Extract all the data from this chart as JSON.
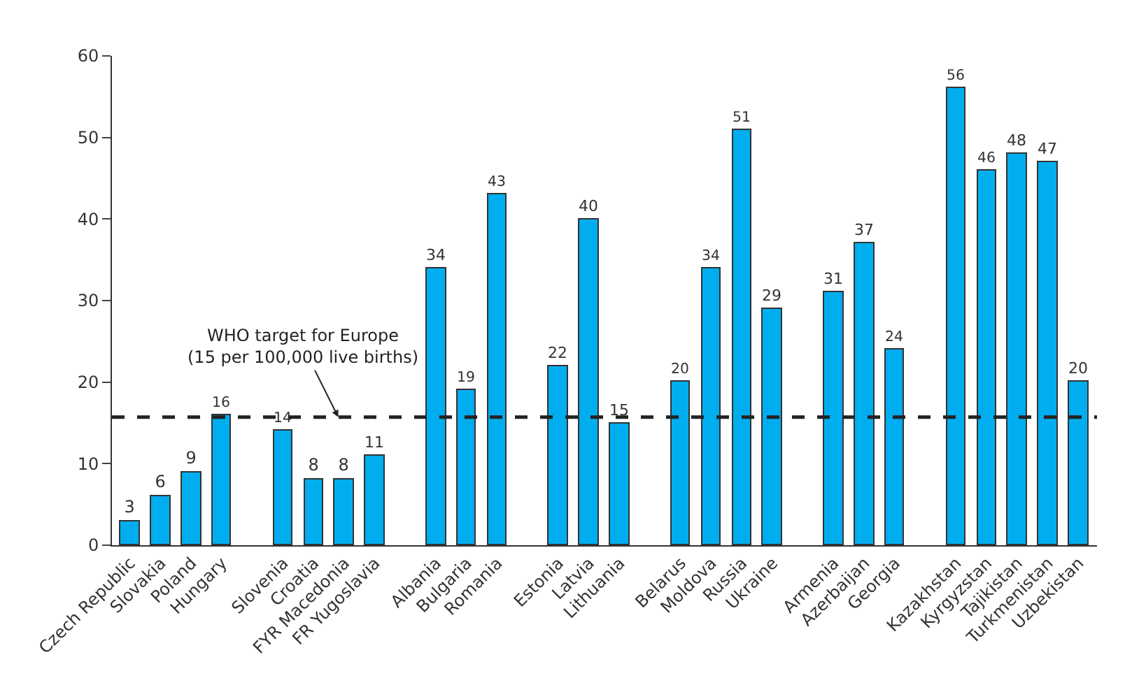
{
  "chart_data": {
    "type": "bar",
    "categories": [
      "Czech Republic",
      "Slovakia",
      "Poland",
      "Hungary",
      null,
      "Slovenia",
      "Croatia",
      "FYR Macedonia",
      "FR Yugoslavia",
      null,
      "Albania",
      "Bulgaria",
      "Romania",
      null,
      "Estonia",
      "Latvia",
      "Lithuania",
      null,
      "Belarus",
      "Moldova",
      "Russia",
      "Ukraine",
      null,
      "Armenia",
      "Azerbaijan",
      "Georgia",
      null,
      "Kazakhstan",
      "Kyrgyzstan",
      "Tajikistan",
      "Turkmenistan",
      "Uzbekistan"
    ],
    "values": [
      3,
      6,
      9,
      16,
      null,
      14,
      8,
      8,
      11,
      null,
      34,
      19,
      43,
      null,
      22,
      40,
      15,
      null,
      20,
      34,
      51,
      29,
      null,
      31,
      37,
      24,
      null,
      56,
      46,
      48,
      47,
      20
    ],
    "color": "#00aeef",
    "ylim": [
      0,
      60
    ],
    "yticks": [
      0,
      10,
      20,
      30,
      40,
      50,
      60
    ],
    "data_labels": true,
    "grid": false,
    "legend": false,
    "ref_lines": [
      {
        "axis": "y",
        "value": 15.7,
        "label": "WHO target for Europe\n(15 per 100,000 live births)",
        "color": "#222222",
        "line_style": "dashed"
      }
    ]
  }
}
